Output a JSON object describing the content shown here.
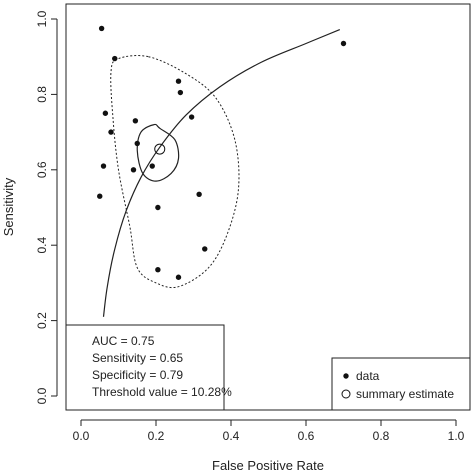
{
  "chart_data": {
    "type": "scatter",
    "title": "",
    "xlabel": "False Positive Rate",
    "ylabel": "Sensitivity",
    "xlim": [
      -0.02,
      1.02
    ],
    "ylim": [
      -0.02,
      1.02
    ],
    "xticks": [
      "0.0",
      "0.2",
      "0.4",
      "0.6",
      "0.8",
      "1.0"
    ],
    "yticks": [
      "0.0",
      "0.2",
      "0.4",
      "0.6",
      "0.8",
      "1.0"
    ],
    "grid": false,
    "series": [
      {
        "name": "data",
        "marker": "filled-circle",
        "x": [
          0.055,
          0.09,
          0.065,
          0.08,
          0.06,
          0.145,
          0.15,
          0.14,
          0.19,
          0.205,
          0.26,
          0.265,
          0.295,
          0.315,
          0.33,
          0.205,
          0.26,
          0.05,
          0.7
        ],
        "y": [
          0.975,
          0.895,
          0.75,
          0.7,
          0.61,
          0.73,
          0.67,
          0.6,
          0.61,
          0.5,
          0.835,
          0.805,
          0.74,
          0.535,
          0.39,
          0.335,
          0.315,
          0.53,
          0.935
        ]
      },
      {
        "name": "summary estimate",
        "marker": "open-circle",
        "x": [
          0.21
        ],
        "y": [
          0.655
        ]
      }
    ],
    "sroc_curve": {
      "x": [
        0.06,
        0.07,
        0.09,
        0.12,
        0.16,
        0.21,
        0.28,
        0.37,
        0.48,
        0.6,
        0.69
      ],
      "y": [
        0.21,
        0.29,
        0.39,
        0.49,
        0.58,
        0.66,
        0.745,
        0.82,
        0.885,
        0.935,
        0.972
      ]
    },
    "confidence_region": {
      "x": [
        0.21,
        0.25,
        0.26,
        0.24,
        0.2,
        0.165,
        0.15,
        0.16,
        0.195,
        0.21
      ],
      "y": [
        0.71,
        0.68,
        0.63,
        0.59,
        0.57,
        0.59,
        0.65,
        0.7,
        0.72,
        0.71
      ]
    },
    "prediction_region": {
      "x": [
        0.18,
        0.28,
        0.36,
        0.41,
        0.42,
        0.39,
        0.34,
        0.26,
        0.2,
        0.15,
        0.13,
        0.1,
        0.085,
        0.08,
        0.1,
        0.18
      ],
      "y": [
        0.9,
        0.855,
        0.79,
        0.68,
        0.55,
        0.43,
        0.34,
        0.29,
        0.3,
        0.34,
        0.45,
        0.6,
        0.74,
        0.86,
        0.895,
        0.9
      ]
    },
    "stats_box": [
      "AUC = 0.75",
      "Sensitivity = 0.65",
      "Specificity = 0.79",
      "Threshold value = 10.28%"
    ],
    "legend": {
      "position": "bottom-right",
      "entries": [
        {
          "label": "data",
          "marker": "filled-circle"
        },
        {
          "label": "summary estimate",
          "marker": "open-circle"
        }
      ]
    }
  }
}
